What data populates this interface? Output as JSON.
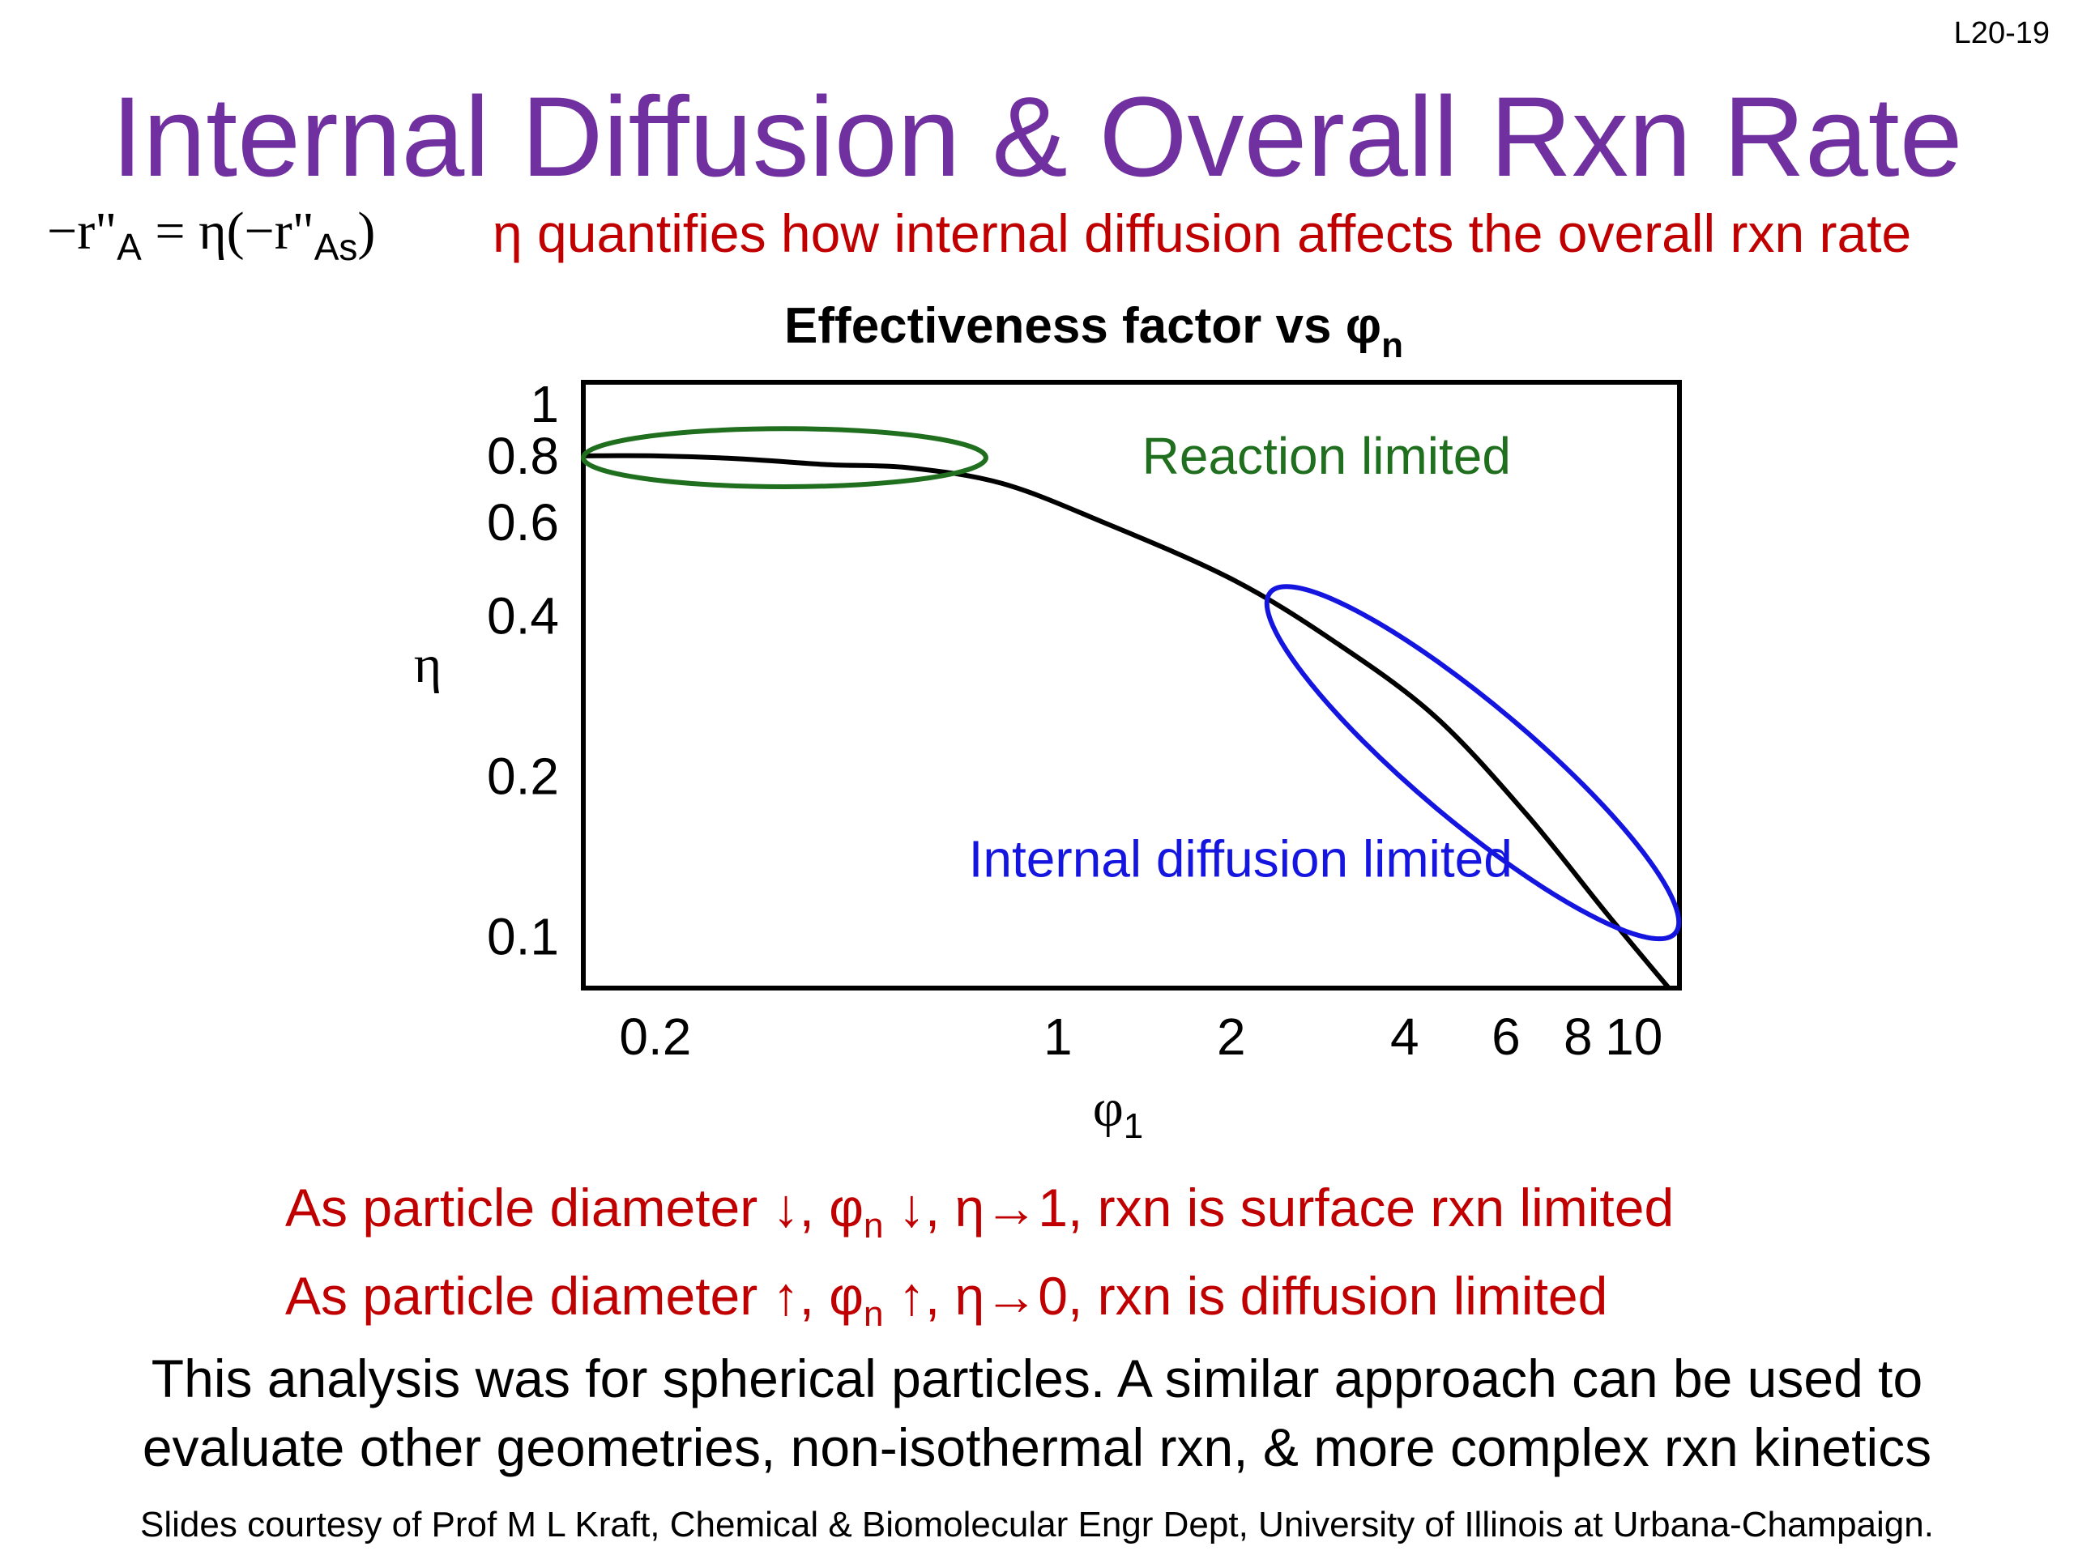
{
  "slide": {
    "number": "L20-19",
    "title": "Internal Diffusion & Overall Rxn Rate",
    "equation": {
      "lhs_main": "−r\"",
      "lhs_sub": "A",
      "rhs_open": " = η(−r\"",
      "rhs_sub": "As",
      "rhs_close": ")"
    },
    "eta_description": "η quantifies how internal diffusion affects the overall rxn rate",
    "bullets": [
      {
        "pre": "As particle diameter ↓, φ",
        "sub": "n",
        "post": " ↓, η→1, rxn is surface rxn limited"
      },
      {
        "pre": "As particle diameter ↑, φ",
        "sub": "n",
        "post": " ↑, η→0, rxn is diffusion limited"
      }
    ],
    "summary_lines": [
      "This analysis was for spherical particles.  A similar approach can be used to",
      "evaluate other geometries, non-isothermal rxn, & more complex rxn kinetics"
    ],
    "credit": "Slides courtesy of Prof M L Kraft, Chemical & Biomolecular Engr Dept, University of Illinois at Urbana-Champaign."
  },
  "chart_data": {
    "type": "line",
    "title_main": "Effectiveness factor vs φ",
    "title_sub": "n",
    "xlabel_main": "φ",
    "xlabel_sub": "1",
    "ylabel": "η",
    "x_scale": "log",
    "y_scale": "log",
    "xlim": [
      0.15,
      12
    ],
    "ylim": [
      0.08,
      1.1
    ],
    "x_ticks": [
      0.2,
      1,
      2,
      4,
      6,
      8,
      10
    ],
    "x_tick_labels": [
      "0.2",
      "1",
      "2",
      "4",
      "6",
      "8",
      "10"
    ],
    "y_ticks": [
      1,
      0.8,
      0.6,
      0.4,
      0.2,
      0.1
    ],
    "y_tick_labels": [
      "1",
      "0.8",
      "0.6",
      "0.4",
      "0.2",
      "0.1"
    ],
    "grid": false,
    "line_color": "#000000",
    "series": [
      {
        "x": [
          0.15,
          0.2,
          0.28,
          0.4,
          0.55,
          0.8,
          1.2,
          2.0,
          3.0,
          4.5,
          6.5,
          9.0,
          11.5
        ],
        "y": [
          0.8,
          0.8,
          0.79,
          0.77,
          0.76,
          0.71,
          0.6,
          0.47,
          0.36,
          0.26,
          0.17,
          0.11,
          0.08
        ]
      }
    ],
    "annotations": [
      {
        "text": "Reaction limited",
        "color": "#1f6f1f",
        "x": 1.4,
        "y": 0.8,
        "ellipse_x": [
          0.15,
          0.75
        ],
        "ellipse_y": [
          0.7,
          0.9
        ]
      },
      {
        "text": "Internal diffusion limited",
        "color": "#1515e0",
        "x": 0.7,
        "y": 0.14,
        "ellipse_x": [
          2.3,
          12
        ],
        "ellipse_y": [
          0.1,
          0.45
        ]
      }
    ]
  }
}
